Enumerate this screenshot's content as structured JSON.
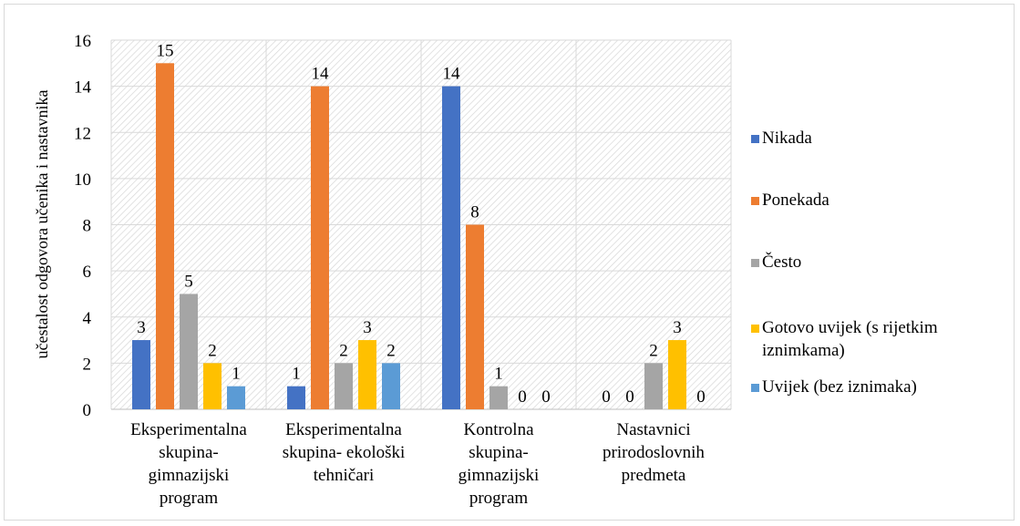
{
  "chart_data": {
    "type": "bar",
    "title": "",
    "xlabel": "",
    "ylabel": "učestalost odgovora učenika i nastavnika",
    "ylim": [
      0,
      16
    ],
    "yticks": [
      0,
      2,
      4,
      6,
      8,
      10,
      12,
      14,
      16
    ],
    "grid": true,
    "legend_position": "right",
    "categories": [
      [
        "Eksperimentalna",
        "skupina-",
        "gimnazijski",
        "program"
      ],
      [
        "Eksperimentalna",
        "skupina- ekološki",
        "tehničari"
      ],
      [
        "Kontrolna",
        "skupina-",
        "gimnazijski",
        "program"
      ],
      [
        "Nastavnici",
        "prirodoslovnih",
        "predmeta"
      ]
    ],
    "series": [
      {
        "name": "Nikada",
        "color": "#4472c4",
        "values": [
          3,
          1,
          14,
          0
        ]
      },
      {
        "name": "Ponekada",
        "color": "#ed7d31",
        "values": [
          15,
          14,
          8,
          0
        ]
      },
      {
        "name": "Često",
        "color": "#a5a5a5",
        "values": [
          5,
          2,
          1,
          2
        ]
      },
      {
        "name": "Gotovo uvijek (s rijetkim iznimkama)",
        "color": "#ffc000",
        "values": [
          2,
          3,
          0,
          3
        ]
      },
      {
        "name": "Uvijek (bez iznimaka)",
        "color": "#5b9bd5",
        "values": [
          1,
          2,
          0,
          0
        ]
      }
    ],
    "legend_lines": [
      [
        "Nikada"
      ],
      [
        "Ponekada"
      ],
      [
        "Često"
      ],
      [
        "Gotovo uvijek (s rijetkim",
        "iznimkama)"
      ],
      [
        "Uvijek (bez iznimaka)"
      ]
    ]
  }
}
